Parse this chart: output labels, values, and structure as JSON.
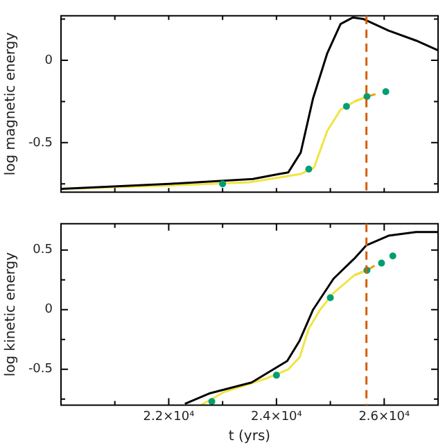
{
  "chart_data": [
    {
      "type": "line",
      "ylabel": "log magnetic energy",
      "xlim": [
        20000,
        27000
      ],
      "ylim": [
        -0.8,
        0.27
      ],
      "tick_labels": "y",
      "grid": false,
      "legend": false,
      "marker": "none",
      "xticks": [
        {
          "value": 20000,
          "label": null
        },
        {
          "value": 21000,
          "label": null
        },
        {
          "value": 22000,
          "label": null
        },
        {
          "value": 23000,
          "label": null
        },
        {
          "value": 24000,
          "label": null
        },
        {
          "value": 25000,
          "label": null
        },
        {
          "value": 26000,
          "label": null
        },
        {
          "value": 27000,
          "label": null
        }
      ],
      "yticks": [
        {
          "value": -0.75,
          "label": null
        },
        -0.5,
        {
          "value": -0.25,
          "label": null
        },
        0,
        {
          "value": 0.25,
          "label": null
        }
      ],
      "ref_lines": [
        {
          "axis": "x",
          "value": 25670,
          "label": null,
          "color": "#d55e00",
          "line_style": "dashed"
        }
      ],
      "series": [
        {
          "color": "#000000",
          "x": [
            20000,
            22010,
            23560,
            24050,
            24220,
            24450,
            24680,
            24940,
            25190,
            25420,
            25620,
            26080,
            26590,
            27000
          ],
          "values": [
            -0.78,
            -0.75,
            -0.72,
            -0.69,
            -0.68,
            -0.56,
            -0.23,
            0.04,
            0.22,
            0.26,
            0.25,
            0.18,
            0.12,
            0.06
          ]
        },
        {
          "color": "#f0e442",
          "x": [
            20000,
            22000,
            23500,
            24450,
            24700,
            24940,
            25190,
            25450,
            25680
          ],
          "values": [
            -0.78,
            -0.76,
            -0.74,
            -0.69,
            -0.65,
            -0.43,
            -0.3,
            -0.25,
            -0.22
          ]
        },
        {
          "color": "#e69f00",
          "line_style": "dashed",
          "x": [
            25450,
            25680,
            25900
          ],
          "values": [
            -0.25,
            -0.22,
            -0.2
          ]
        },
        {
          "type": "scatter",
          "marker": "circle",
          "color": "#009e73",
          "x": [
            23000,
            24600,
            25300,
            25680,
            26030
          ],
          "values": [
            -0.75,
            -0.66,
            -0.28,
            -0.22,
            -0.19
          ]
        }
      ]
    },
    {
      "type": "line",
      "xlabel": "t (yrs)",
      "ylabel": "log kinetic energy",
      "xlim": [
        20000,
        27000
      ],
      "ylim": [
        -0.8,
        0.72
      ],
      "grid": false,
      "legend": false,
      "marker": "none",
      "xticks": [
        {
          "value": 20000,
          "label": null
        },
        {
          "value": 21000,
          "label": null
        },
        {
          "value": 22000,
          "label": "2.2×10⁴"
        },
        {
          "value": 23000,
          "label": null
        },
        {
          "value": 24000,
          "label": "2.4×10⁴"
        },
        {
          "value": 25000,
          "label": null
        },
        {
          "value": 26000,
          "label": "2.6×10⁴"
        },
        {
          "value": 27000,
          "label": null
        }
      ],
      "yticks": [
        {
          "value": -0.75,
          "label": null
        },
        -0.5,
        {
          "value": -0.25,
          "label": null
        },
        0,
        {
          "value": 0.25,
          "label": null
        },
        0.5
      ],
      "ref_lines": [
        {
          "axis": "x",
          "value": 25670,
          "label": null,
          "color": "#d55e00",
          "line_style": "dashed"
        }
      ],
      "series": [
        {
          "color": "#000000",
          "x": [
            22300,
            22770,
            23540,
            24200,
            24430,
            24680,
            25060,
            25450,
            25670,
            26080,
            26590,
            27000
          ],
          "values": [
            -0.79,
            -0.7,
            -0.61,
            -0.43,
            -0.26,
            0.0,
            0.26,
            0.43,
            0.54,
            0.62,
            0.65,
            0.65
          ]
        },
        {
          "color": "#f0e442",
          "x": [
            22600,
            23030,
            23790,
            24220,
            24430,
            24600,
            24810,
            25060,
            25450,
            25680
          ],
          "values": [
            -0.8,
            -0.69,
            -0.58,
            -0.5,
            -0.4,
            -0.16,
            0.0,
            0.14,
            0.29,
            0.33
          ]
        },
        {
          "color": "#e69f00",
          "line_style": "dashed",
          "x": [
            25450,
            25680,
            25900
          ],
          "values": [
            0.29,
            0.33,
            0.39
          ]
        },
        {
          "type": "scatter",
          "marker": "circle",
          "color": "#009e73",
          "x": [
            22800,
            24000,
            25000,
            25680,
            25950,
            26160
          ],
          "values": [
            -0.77,
            -0.55,
            0.1,
            0.33,
            0.39,
            0.45
          ]
        }
      ]
    }
  ]
}
